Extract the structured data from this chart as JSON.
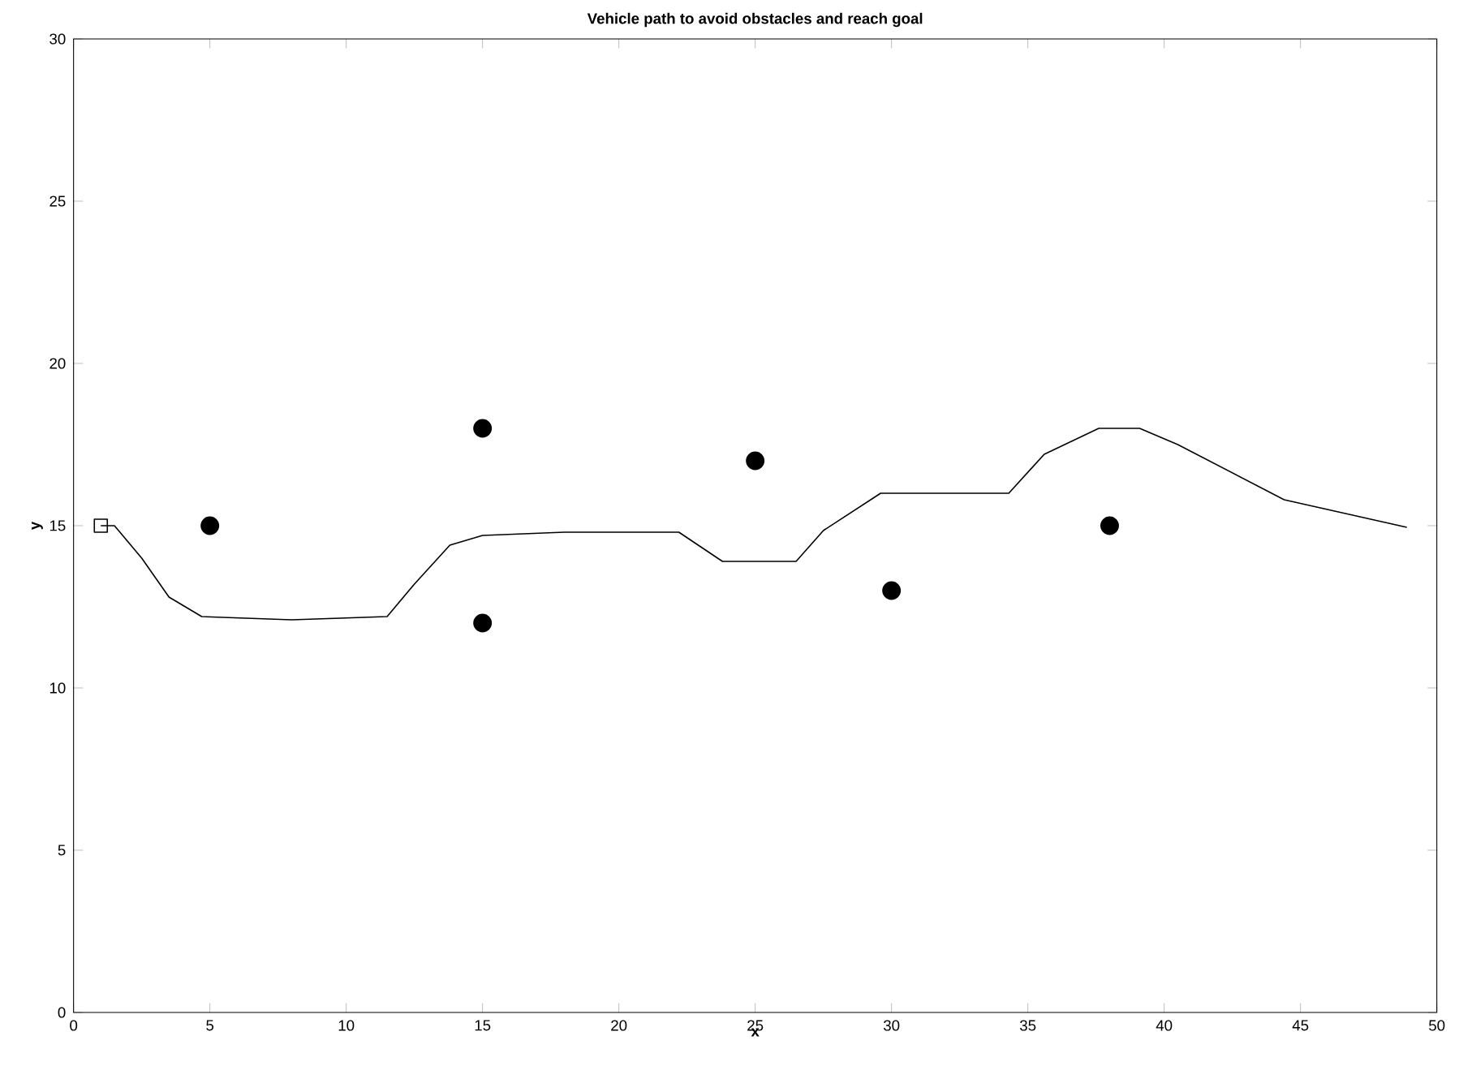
{
  "chart_data": {
    "type": "line",
    "title": "Vehicle path to avoid obstacles and reach goal",
    "xlabel": "x",
    "ylabel": "y",
    "xlim": [
      0,
      50
    ],
    "ylim": [
      0,
      30
    ],
    "xticks": [
      0,
      5,
      10,
      15,
      20,
      25,
      30,
      35,
      40,
      45,
      50
    ],
    "yticks": [
      0,
      5,
      10,
      15,
      20,
      25,
      30
    ],
    "grid": false,
    "series": [
      {
        "marker": "none",
        "color": "#000000",
        "x": [
          1,
          1.5,
          2.5,
          3.5,
          4.7,
          8,
          11.5,
          12.5,
          13.8,
          15,
          18,
          22.2,
          23.8,
          26.5,
          27.5,
          29.6,
          34.3,
          35.6,
          37.6,
          39.1,
          40.5,
          44.4,
          48.9
        ],
        "values": [
          15,
          15,
          14,
          12.8,
          12.2,
          12.1,
          12.2,
          13.2,
          14.4,
          14.7,
          14.8,
          14.8,
          13.9,
          13.9,
          14.85,
          16,
          16,
          17.2,
          18,
          18,
          17.5,
          15.8,
          14.95
        ]
      },
      {
        "type": "scatter",
        "marker": "square",
        "color": "#000000",
        "x": [
          1
        ],
        "values": [
          15
        ]
      },
      {
        "type": "scatter",
        "marker": "circle",
        "color": "#000000",
        "x": [
          5,
          15,
          15,
          25,
          30,
          38
        ],
        "values": [
          15,
          18,
          12,
          17,
          13,
          15
        ]
      }
    ]
  }
}
